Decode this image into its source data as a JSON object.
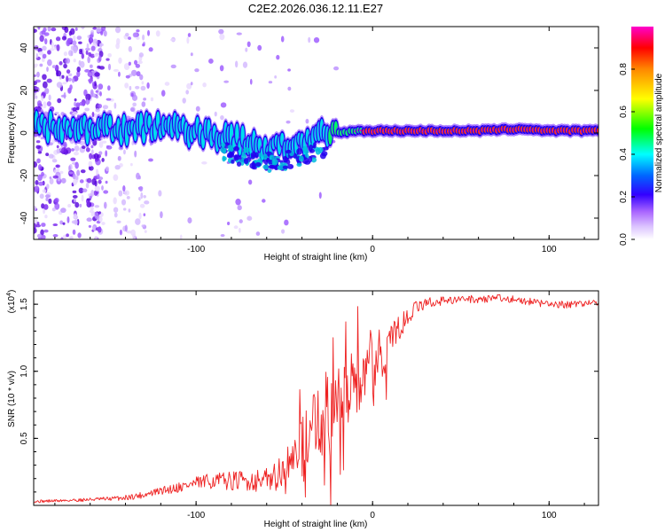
{
  "chart_data": [
    {
      "type": "heatmap",
      "title": "C2E2.2026.036.12.11.E27",
      "xlabel": "Height of straight line (km)",
      "ylabel": "Frequency (Hz)",
      "xlim": [
        -192,
        128
      ],
      "ylim": [
        -50,
        50
      ],
      "x_ticks": [
        -100,
        0,
        100
      ],
      "y_ticks": [
        -40,
        -20,
        0,
        20,
        40
      ],
      "colorbar": {
        "label": "Normalized spectral amplitude",
        "range": [
          0,
          1
        ],
        "ticks": [
          "0.0",
          "0.2",
          "0.4",
          "0.6",
          "0.8"
        ],
        "colors": [
          "#ffffff",
          "#cc99ff",
          "#8800ff",
          "#0000ff",
          "#00ffff",
          "#00ff00",
          "#ffff00",
          "#ff8800",
          "#ff0000",
          "#ff00cc"
        ]
      },
      "ridge": [
        {
          "x": -190,
          "y": 3
        },
        {
          "x": -175,
          "y": 3
        },
        {
          "x": -160,
          "y": 3
        },
        {
          "x": -145,
          "y": 2
        },
        {
          "x": -130,
          "y": 2
        },
        {
          "x": -120,
          "y": 3
        },
        {
          "x": -110,
          "y": 2
        },
        {
          "x": -100,
          "y": 1
        },
        {
          "x": -90,
          "y": -1
        },
        {
          "x": -80,
          "y": -3
        },
        {
          "x": -70,
          "y": -5
        },
        {
          "x": -60,
          "y": -7
        },
        {
          "x": -50,
          "y": -6
        },
        {
          "x": -40,
          "y": -4
        },
        {
          "x": -30,
          "y": -2
        },
        {
          "x": -20,
          "y": 0
        },
        {
          "x": -10,
          "y": 1
        },
        {
          "x": 0,
          "y": 1
        },
        {
          "x": 20,
          "y": 1
        },
        {
          "x": 60,
          "y": 1
        },
        {
          "x": 85,
          "y": 2
        },
        {
          "x": 100,
          "y": 1
        },
        {
          "x": 128,
          "y": 1
        }
      ]
    },
    {
      "type": "line",
      "title": "",
      "xlabel": "Height of straight line (km)",
      "ylabel": "SNR (10 * v/v)",
      "multiplier_label": "(x10",
      "multiplier_exp": "4",
      "multiplier_close": ")",
      "xlim": [
        -192,
        128
      ],
      "ylim": [
        0,
        1.6
      ],
      "x_ticks": [
        -100,
        0,
        100
      ],
      "y_ticks": [
        0.5,
        1.0,
        1.5
      ],
      "color": "#ee2222",
      "series": [
        {
          "name": "SNR",
          "points": [
            {
              "x": -192,
              "y": 0.03
            },
            {
              "x": -170,
              "y": 0.04
            },
            {
              "x": -150,
              "y": 0.05
            },
            {
              "x": -140,
              "y": 0.06
            },
            {
              "x": -130,
              "y": 0.08
            },
            {
              "x": -120,
              "y": 0.11
            },
            {
              "x": -110,
              "y": 0.14
            },
            {
              "x": -100,
              "y": 0.17
            },
            {
              "x": -90,
              "y": 0.19
            },
            {
              "x": -80,
              "y": 0.19
            },
            {
              "x": -70,
              "y": 0.19
            },
            {
              "x": -60,
              "y": 0.2
            },
            {
              "x": -50,
              "y": 0.28
            },
            {
              "x": -45,
              "y": 0.42
            },
            {
              "x": -40,
              "y": 0.5
            },
            {
              "x": -35,
              "y": 0.6
            },
            {
              "x": -30,
              "y": 0.68
            },
            {
              "x": -25,
              "y": 0.75
            },
            {
              "x": -20,
              "y": 0.82
            },
            {
              "x": -15,
              "y": 0.88
            },
            {
              "x": -10,
              "y": 0.92
            },
            {
              "x": -5,
              "y": 0.97
            },
            {
              "x": 0,
              "y": 1.02
            },
            {
              "x": 5,
              "y": 1.1
            },
            {
              "x": 10,
              "y": 1.22
            },
            {
              "x": 15,
              "y": 1.33
            },
            {
              "x": 20,
              "y": 1.42
            },
            {
              "x": 25,
              "y": 1.48
            },
            {
              "x": 30,
              "y": 1.51
            },
            {
              "x": 40,
              "y": 1.53
            },
            {
              "x": 50,
              "y": 1.54
            },
            {
              "x": 60,
              "y": 1.54
            },
            {
              "x": 70,
              "y": 1.55
            },
            {
              "x": 80,
              "y": 1.54
            },
            {
              "x": 90,
              "y": 1.52
            },
            {
              "x": 100,
              "y": 1.5
            },
            {
              "x": 110,
              "y": 1.5
            },
            {
              "x": 120,
              "y": 1.51
            },
            {
              "x": 128,
              "y": 1.51
            }
          ],
          "noise": [
            {
              "x": -192,
              "y": 0.01
            },
            {
              "x": -150,
              "y": 0.015
            },
            {
              "x": -120,
              "y": 0.03
            },
            {
              "x": -100,
              "y": 0.05
            },
            {
              "x": -80,
              "y": 0.07
            },
            {
              "x": -60,
              "y": 0.09
            },
            {
              "x": -50,
              "y": 0.12
            },
            {
              "x": -40,
              "y": 0.2
            },
            {
              "x": -30,
              "y": 0.3
            },
            {
              "x": -20,
              "y": 0.3
            },
            {
              "x": -10,
              "y": 0.26
            },
            {
              "x": 0,
              "y": 0.2
            },
            {
              "x": 10,
              "y": 0.14
            },
            {
              "x": 20,
              "y": 0.06
            },
            {
              "x": 40,
              "y": 0.03
            },
            {
              "x": 128,
              "y": 0.025
            }
          ]
        }
      ]
    }
  ]
}
